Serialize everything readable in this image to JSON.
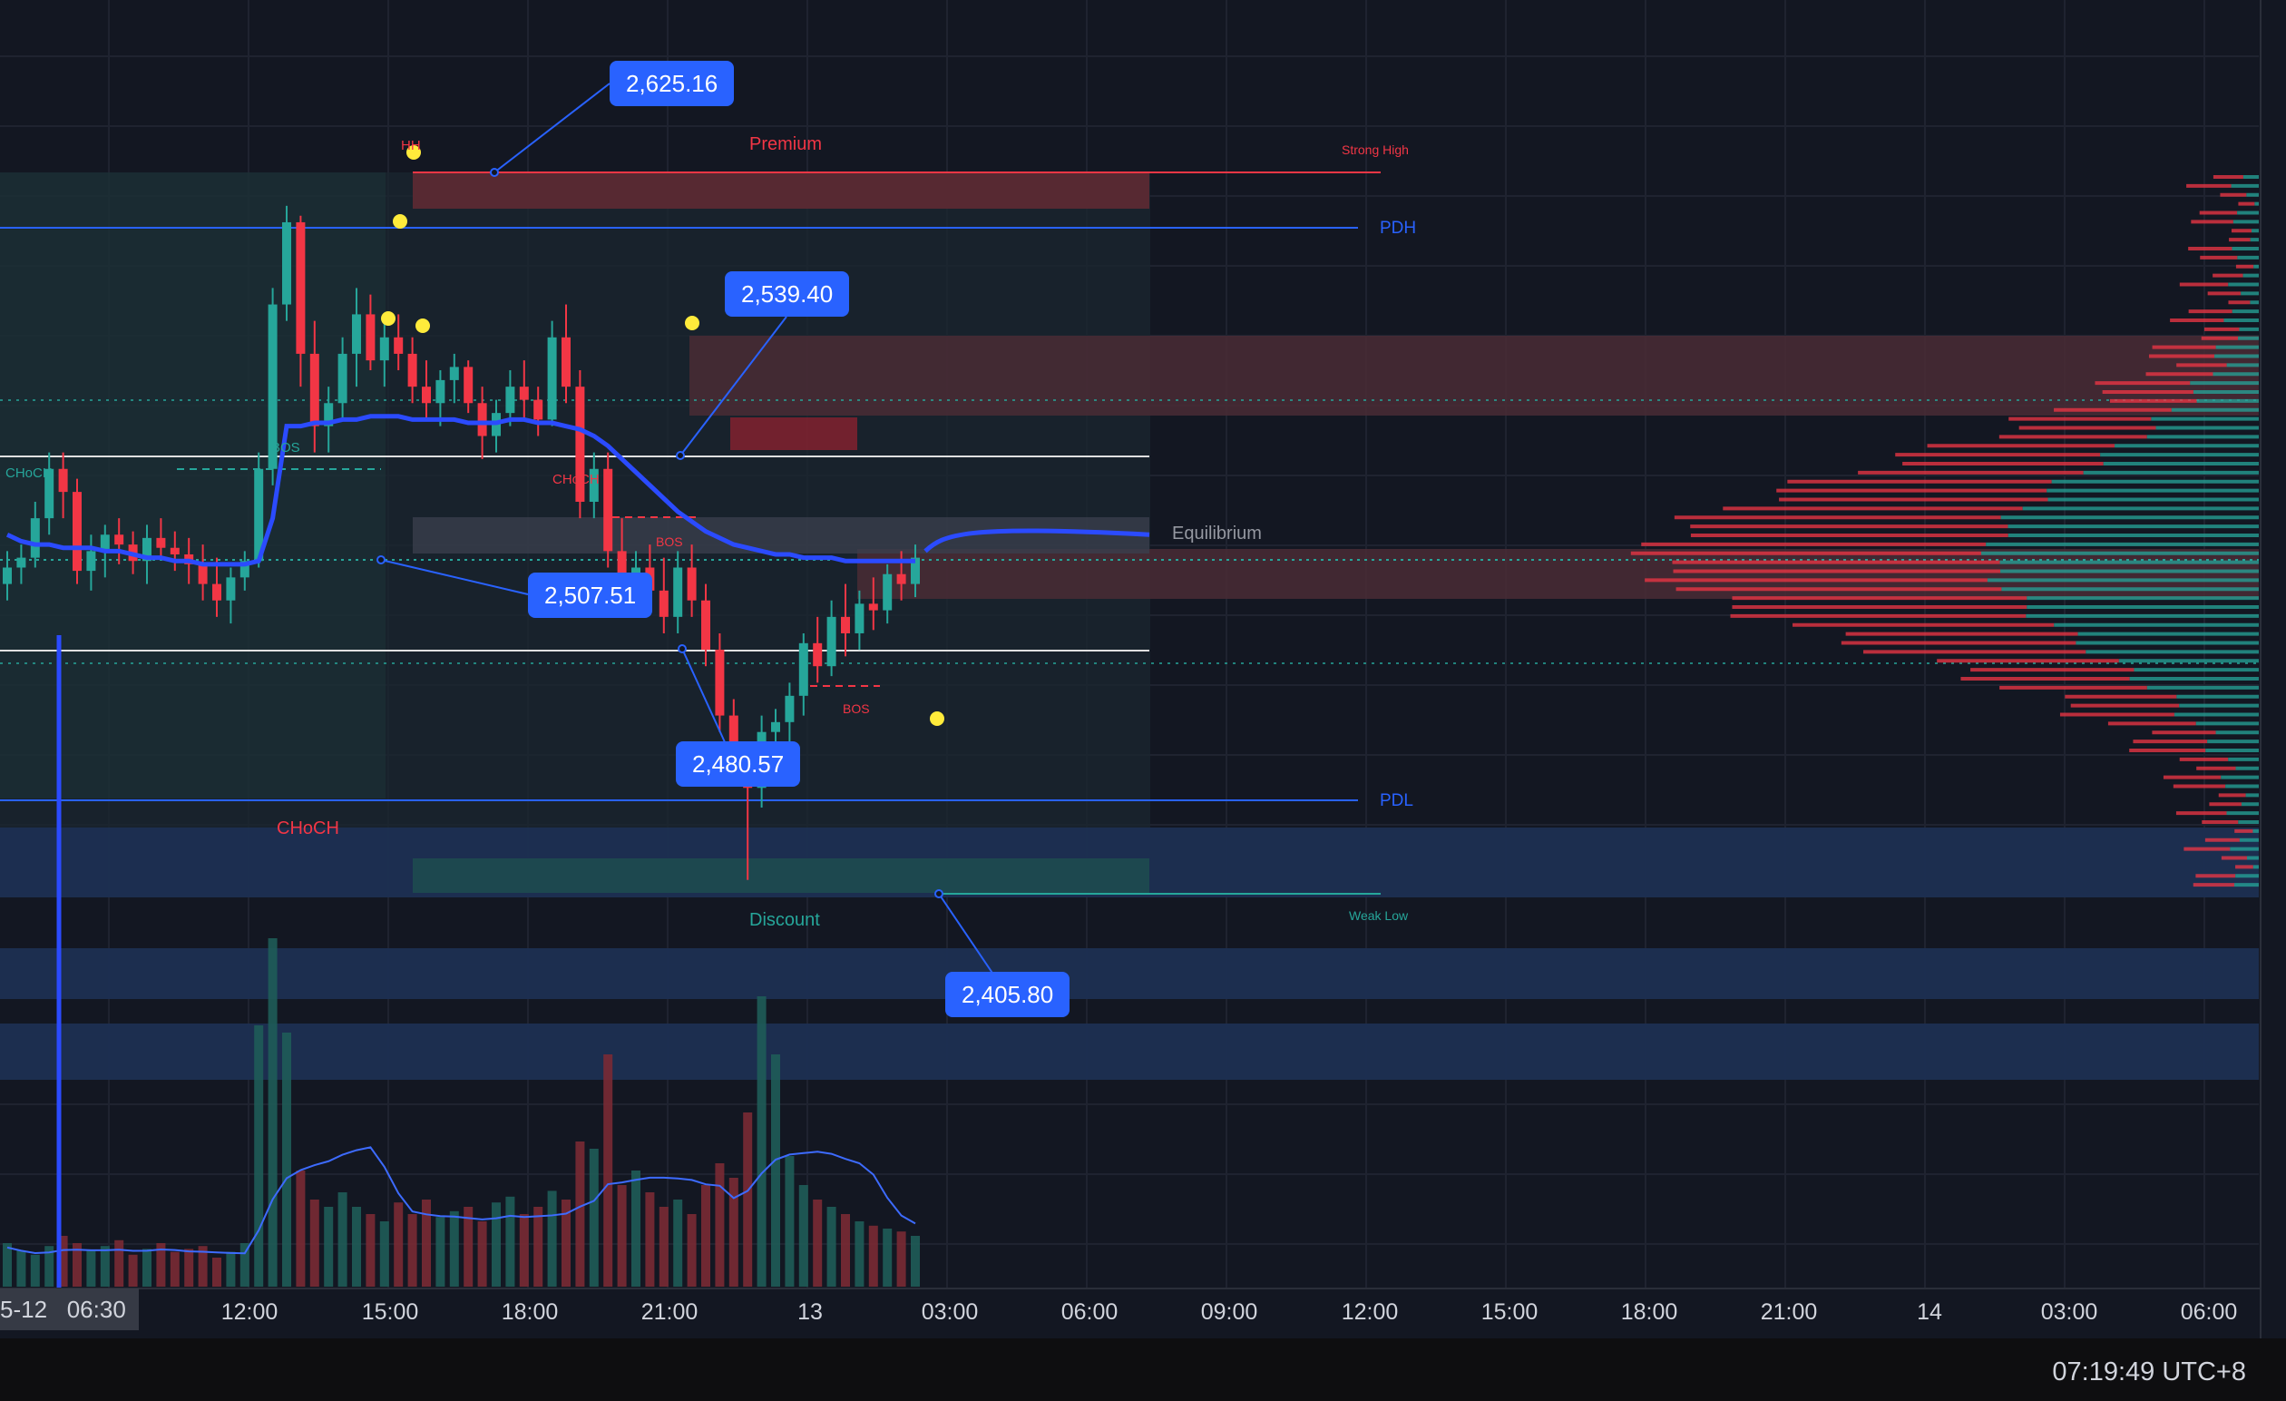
{
  "colors": {
    "background": "#131722",
    "grid": "#1f2330",
    "up": "#26a69a",
    "down": "#f23645",
    "vwap": "#2b4bff",
    "premium": "#f23645",
    "discount": "#26a69a",
    "label_blue": "#2962ff",
    "marker": "#ffeb3b"
  },
  "chart_data": {
    "type": "candlestick",
    "time_axis": {
      "ticks": [
        "12:00",
        "15:00",
        "18:00",
        "21:00",
        "13",
        "03:00",
        "06:00",
        "09:00",
        "12:00",
        "15:00",
        "18:00",
        "21:00",
        "14",
        "03:00",
        "06:00"
      ],
      "current_date_label": "5-12",
      "current_time_label": "06:30"
    },
    "price_badges": [
      {
        "name": "swing-high",
        "value": "2,625.16"
      },
      {
        "name": "upper-level",
        "value": "2,539.40"
      },
      {
        "name": "mid-level",
        "value": "2,507.51"
      },
      {
        "name": "lower-level",
        "value": "2,480.57"
      },
      {
        "name": "swing-low",
        "value": "2,405.80"
      }
    ],
    "levels": [
      {
        "label": "Strong High",
        "price": 2625.16
      },
      {
        "label": "PDH",
        "price": 2602
      },
      {
        "label": "Equilibrium",
        "price": 2515
      },
      {
        "label": "PDL",
        "price": 2437
      },
      {
        "label": "Weak Low",
        "price": 2405.8
      }
    ],
    "zones": {
      "premium": "Premium",
      "discount": "Discount",
      "equilibrium": "Equilibrium"
    },
    "structure_labels": [
      "CHoCH",
      "BOS",
      "CHoCH",
      "BOS",
      "BOS",
      "CHoCH",
      "HH"
    ],
    "candles": [
      [
        2500,
        2510,
        2495,
        2505
      ],
      [
        2505,
        2512,
        2500,
        2508
      ],
      [
        2508,
        2525,
        2505,
        2520
      ],
      [
        2520,
        2540,
        2515,
        2535
      ],
      [
        2535,
        2540,
        2520,
        2528
      ],
      [
        2528,
        2532,
        2500,
        2504
      ],
      [
        2504,
        2515,
        2498,
        2510
      ],
      [
        2510,
        2518,
        2502,
        2515
      ],
      [
        2515,
        2520,
        2506,
        2512
      ],
      [
        2512,
        2516,
        2503,
        2507
      ],
      [
        2507,
        2518,
        2500,
        2514
      ],
      [
        2514,
        2520,
        2508,
        2511
      ],
      [
        2511,
        2516,
        2504,
        2509
      ],
      [
        2509,
        2514,
        2500,
        2506
      ],
      [
        2506,
        2512,
        2495,
        2500
      ],
      [
        2500,
        2508,
        2490,
        2495
      ],
      [
        2495,
        2505,
        2488,
        2502
      ],
      [
        2502,
        2510,
        2498,
        2507
      ],
      [
        2507,
        2540,
        2505,
        2535
      ],
      [
        2535,
        2590,
        2530,
        2585
      ],
      [
        2585,
        2615,
        2580,
        2610
      ],
      [
        2610,
        2612,
        2560,
        2570
      ],
      [
        2570,
        2580,
        2540,
        2548
      ],
      [
        2548,
        2560,
        2540,
        2555
      ],
      [
        2555,
        2575,
        2550,
        2570
      ],
      [
        2570,
        2590,
        2560,
        2582
      ],
      [
        2582,
        2588,
        2565,
        2568
      ],
      [
        2568,
        2580,
        2560,
        2575
      ],
      [
        2575,
        2582,
        2565,
        2570
      ],
      [
        2570,
        2575,
        2555,
        2560
      ],
      [
        2560,
        2568,
        2550,
        2555
      ],
      [
        2555,
        2565,
        2548,
        2562
      ],
      [
        2562,
        2570,
        2555,
        2566
      ],
      [
        2566,
        2568,
        2552,
        2555
      ],
      [
        2555,
        2560,
        2538,
        2545
      ],
      [
        2545,
        2556,
        2540,
        2552
      ],
      [
        2552,
        2565,
        2548,
        2560
      ],
      [
        2560,
        2568,
        2550,
        2556
      ],
      [
        2556,
        2560,
        2545,
        2550
      ],
      [
        2550,
        2580,
        2548,
        2575
      ],
      [
        2575,
        2585,
        2555,
        2560
      ],
      [
        2560,
        2565,
        2520,
        2525
      ],
      [
        2525,
        2540,
        2520,
        2535
      ],
      [
        2535,
        2540,
        2505,
        2510
      ],
      [
        2510,
        2520,
        2495,
        2500
      ],
      [
        2500,
        2510,
        2490,
        2505
      ],
      [
        2505,
        2512,
        2492,
        2498
      ],
      [
        2498,
        2508,
        2485,
        2490
      ],
      [
        2490,
        2510,
        2485,
        2505
      ],
      [
        2505,
        2512,
        2490,
        2495
      ],
      [
        2495,
        2500,
        2475,
        2480
      ],
      [
        2480,
        2485,
        2455,
        2460
      ],
      [
        2460,
        2465,
        2440,
        2445
      ],
      [
        2445,
        2450,
        2410,
        2438
      ],
      [
        2438,
        2460,
        2432,
        2455
      ],
      [
        2455,
        2462,
        2445,
        2458
      ],
      [
        2458,
        2470,
        2452,
        2466
      ],
      [
        2466,
        2485,
        2460,
        2482
      ],
      [
        2482,
        2490,
        2470,
        2475
      ],
      [
        2475,
        2495,
        2472,
        2490
      ],
      [
        2490,
        2500,
        2478,
        2485
      ],
      [
        2485,
        2498,
        2480,
        2494
      ],
      [
        2494,
        2502,
        2486,
        2492
      ],
      [
        2492,
        2506,
        2488,
        2503
      ],
      [
        2503,
        2510,
        2495,
        2500
      ],
      [
        2500,
        2512,
        2496,
        2508
      ]
    ],
    "vwap": [
      2515,
      2513,
      2512,
      2512,
      2511,
      2511,
      2511,
      2510,
      2510,
      2509,
      2508,
      2508,
      2507,
      2507,
      2506,
      2506,
      2506,
      2506,
      2507,
      2520,
      2548,
      2548,
      2549,
      2549,
      2550,
      2550,
      2551,
      2551,
      2551,
      2550,
      2550,
      2550,
      2550,
      2549,
      2549,
      2549,
      2550,
      2550,
      2549,
      2549,
      2548,
      2547,
      2545,
      2542,
      2538,
      2534,
      2530,
      2526,
      2522,
      2519,
      2516,
      2514,
      2512,
      2511,
      2510,
      2509,
      2509,
      2508,
      2508,
      2508,
      2507,
      2507,
      2507,
      2507,
      2507,
      2507
    ],
    "volume": [
      30,
      25,
      22,
      28,
      35,
      30,
      25,
      28,
      32,
      22,
      26,
      30,
      24,
      26,
      28,
      20,
      24,
      30,
      180,
      240,
      175,
      80,
      60,
      55,
      65,
      55,
      50,
      45,
      58,
      50,
      60,
      48,
      52,
      55,
      45,
      58,
      62,
      50,
      55,
      66,
      60,
      100,
      95,
      160,
      70,
      80,
      65,
      55,
      60,
      50,
      70,
      85,
      75,
      120,
      200,
      160,
      90,
      70,
      60,
      55,
      50,
      45,
      42,
      40,
      38,
      35
    ]
  },
  "footer": {
    "clock": "07:19:49 UTC+8"
  }
}
